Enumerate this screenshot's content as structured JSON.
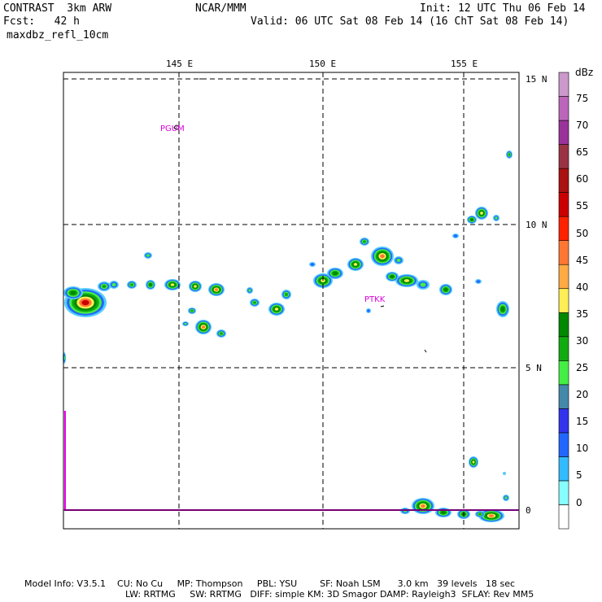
{
  "header": {
    "left_line1": "CONTRAST  3km ARW",
    "left_line2": "Fcst:   42 h",
    "left_line3": "maxdbz_refl_10cm",
    "center": "NCAR/MMM",
    "right_line1": "Init: 12 UTC Thu 06 Feb 14",
    "right_line2": "Valid: 06 UTC Sat 08 Feb 14 (16 ChT Sat 08 Feb 14)"
  },
  "map": {
    "lon_labels": [
      "145 E",
      "150 E",
      "155 E"
    ],
    "lat_labels": [
      "15 N",
      "10 N",
      "5 N",
      "0"
    ],
    "stations": [
      "PGUM",
      "PTKK"
    ]
  },
  "colorbar": {
    "unit": "dBz",
    "levels": [
      "75",
      "70",
      "65",
      "60",
      "55",
      "50",
      "45",
      "40",
      "35",
      "30",
      "25",
      "20",
      "15",
      "10",
      "5",
      "0"
    ],
    "colors": [
      "#ffffff",
      "#88ffff",
      "#33bbff",
      "#2266ff",
      "#3333ee",
      "#4488aa",
      "#44ee44",
      "#11aa11",
      "#008800",
      "#ffee55",
      "#ffaa44",
      "#ff7733",
      "#ff2200",
      "#cc0000",
      "#aa1111",
      "#993344",
      "#993399",
      "#bb66bb",
      "#cc99cc"
    ]
  },
  "footer": {
    "line1": "Model Info: V3.5.1    CU: No Cu     MP: Thompson     PBL: YSU        SF: Noah LSM      3.0 km   39 levels   18 sec",
    "line2": "LW: RRTMG     SW: RRTMG   DIFF: simple KM: 3D Smagor DAMP: Rayleigh3  SFLAY: Rev MM5"
  }
}
